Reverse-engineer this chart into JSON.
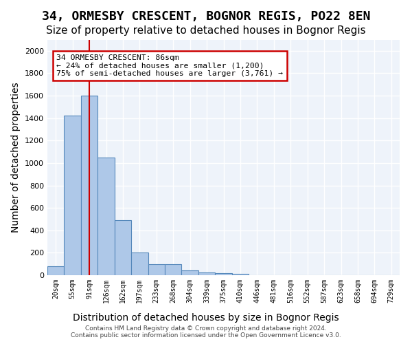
{
  "title": "34, ORMESBY CRESCENT, BOGNOR REGIS, PO22 8EN",
  "subtitle": "Size of property relative to detached houses in Bognor Regis",
  "xlabel": "Distribution of detached houses by size in Bognor Regis",
  "ylabel": "Number of detached properties",
  "bin_labels": [
    "20sqm",
    "55sqm",
    "91sqm",
    "126sqm",
    "162sqm",
    "197sqm",
    "233sqm",
    "268sqm",
    "304sqm",
    "339sqm",
    "375sqm",
    "410sqm",
    "446sqm",
    "481sqm",
    "516sqm",
    "552sqm",
    "587sqm",
    "623sqm",
    "658sqm",
    "694sqm",
    "729sqm"
  ],
  "bar_values": [
    80,
    1420,
    1600,
    1050,
    490,
    200,
    100,
    100,
    40,
    25,
    20,
    15,
    0,
    0,
    0,
    0,
    0,
    0,
    0,
    0,
    0
  ],
  "bar_color": "#aec8e8",
  "bar_edge_color": "#5588bb",
  "red_line_x": 2,
  "annotation_text": "34 ORMESBY CRESCENT: 86sqm\n← 24% of detached houses are smaller (1,200)\n75% of semi-detached houses are larger (3,761) →",
  "annotation_box_color": "#ffffff",
  "annotation_box_edge": "#cc0000",
  "ylim": [
    0,
    2100
  ],
  "yticks": [
    0,
    200,
    400,
    600,
    800,
    1000,
    1200,
    1400,
    1600,
    1800,
    2000
  ],
  "background_color": "#eef3fa",
  "grid_color": "#ffffff",
  "footnote": "Contains HM Land Registry data © Crown copyright and database right 2024.\nContains public sector information licensed under the Open Government Licence v3.0.",
  "title_fontsize": 13,
  "subtitle_fontsize": 11,
  "xlabel_fontsize": 10,
  "ylabel_fontsize": 10
}
